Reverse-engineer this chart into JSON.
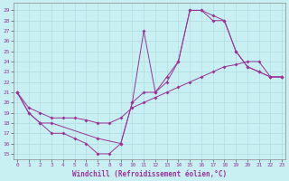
{
  "xlabel": "Windchill (Refroidissement éolien,°C)",
  "xlim": [
    -0.3,
    23.3
  ],
  "ylim": [
    14.5,
    29.7
  ],
  "ytick_vals": [
    15,
    16,
    17,
    18,
    19,
    20,
    21,
    22,
    23,
    24,
    25,
    26,
    27,
    28,
    29
  ],
  "xtick_vals": [
    0,
    1,
    2,
    3,
    4,
    5,
    6,
    7,
    8,
    9,
    10,
    11,
    12,
    13,
    14,
    15,
    16,
    17,
    18,
    19,
    20,
    21,
    22,
    23
  ],
  "line_color": "#993399",
  "bg_color": "#c8eff2",
  "grid_color": "#b0dde0",
  "line1_x": [
    0,
    1,
    2,
    3,
    4,
    5,
    6,
    7,
    8,
    9,
    10,
    11,
    12,
    13,
    14,
    15,
    16,
    17,
    18,
    19,
    20,
    21,
    22,
    23
  ],
  "line1_y": [
    21,
    19,
    18,
    17,
    17,
    16.5,
    16,
    15,
    15,
    16,
    20,
    21,
    21,
    22,
    24,
    29,
    29,
    28.5,
    28,
    25,
    23.5,
    23,
    22.5,
    22.5
  ],
  "line2_x": [
    0,
    1,
    2,
    3,
    4,
    5,
    6,
    7,
    8,
    9,
    10,
    11,
    12,
    13,
    14,
    15,
    16,
    17,
    18,
    19,
    20,
    21,
    22,
    23
  ],
  "line2_y": [
    21,
    19.5,
    19,
    18.5,
    18.5,
    18.5,
    18.3,
    18,
    18,
    18.5,
    19.5,
    20,
    20.5,
    21,
    21.5,
    22,
    22.5,
    23,
    23.5,
    23.7,
    24,
    24,
    22.5,
    22.5
  ],
  "line3_x": [
    0,
    1,
    2,
    3,
    7,
    9,
    10,
    11,
    12,
    13,
    14,
    15,
    16,
    17,
    18,
    19,
    20,
    21,
    22,
    23
  ],
  "line3_y": [
    21,
    19,
    18,
    18,
    16.5,
    16,
    20,
    27,
    21,
    22.5,
    24,
    29,
    29,
    28,
    28,
    25,
    23.5,
    23,
    22.5,
    22.5
  ]
}
